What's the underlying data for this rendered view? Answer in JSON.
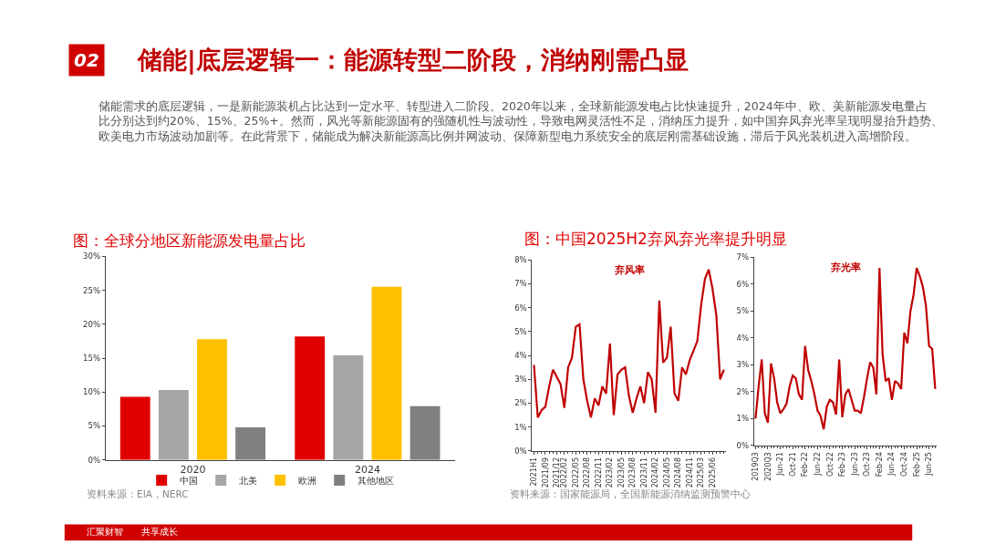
{
  "chart_data": [
    {
      "type": "other",
      "title": "储能|底层逻辑一：能源转型二阶段，消纳刚需凸显",
      "annotations": [
        "02",
        "储能需求的底层逻辑，一是新能源装机占比达到一定水平、转型进入二阶段。2020年以来，全球新能源发电占比快速提升，2024年中、欧、美新能源发电量占比分别达到约20%、15%、25%+。然而，风光等新能源固有的强随机性与波动性，导致电网灵活性不足，消纳压力提升，如中国弃风弃光率呈现明显抬升趋势、欧美电力市场波动加剧等。在此背景下，储能成为解决新能源高比例并网波动、保障新型电力系统安全的底层刚需基础设施，滞后于风光装机进入高增阶段。",
        "汇聚财智　　共享成长"
      ]
    },
    {
      "type": "bar",
      "title": "图：全球分地区新能源发电量占比",
      "categories": [
        "2020",
        "2024"
      ],
      "series": [
        {
          "name": "中国",
          "color": "#e00000",
          "values": [
            9.3,
            18.2
          ]
        },
        {
          "name": "北美",
          "color": "#a6a6a6",
          "values": [
            10.3,
            15.4
          ]
        },
        {
          "name": "欧洲",
          "color": "#ffc000",
          "values": [
            17.8,
            25.5
          ]
        },
        {
          "name": "其他地区",
          "color": "#808080",
          "values": [
            4.8,
            7.9
          ]
        }
      ],
      "ylim": [
        0,
        30
      ],
      "yticks": [
        {
          "value": 0,
          "label": "0%"
        },
        {
          "value": 5,
          "label": "5%"
        },
        {
          "value": 10,
          "label": "10%"
        },
        {
          "value": 15,
          "label": "15%"
        },
        {
          "value": 20,
          "label": "20%"
        },
        {
          "value": 25,
          "label": "25%"
        },
        {
          "value": 30,
          "label": "30%"
        }
      ],
      "legend": "bottom",
      "grid": false,
      "annotations": [
        "资料来源：EIA，NERC"
      ]
    },
    {
      "type": "line",
      "title": "图：中国2025H2弃风弃光率提升明显",
      "categories": [
        "2021H1",
        null,
        null,
        "2021/09",
        null,
        null,
        "2021/12",
        null,
        "2022/02",
        null,
        null,
        "2022/05",
        null,
        null,
        "2022/08",
        null,
        null,
        "2022/11",
        null,
        null,
        "2023/02",
        null,
        null,
        "2023/05",
        null,
        null,
        "2023/08",
        null,
        null,
        "2023/11",
        null,
        null,
        "2024/02",
        null,
        null,
        "2024/05",
        null,
        null,
        "2024/08",
        null,
        null,
        "2024/11",
        null,
        null,
        "2025/03",
        null,
        null,
        "2025/06",
        null,
        null,
        null
      ],
      "series": [
        {
          "name": "弃风率",
          "color": "#c00000",
          "values": [
            3.6,
            1.4,
            1.7,
            1.85,
            2.7,
            3.4,
            3.1,
            2.8,
            1.8,
            3.5,
            3.9,
            5.2,
            5.3,
            3.0,
            2.1,
            1.4,
            2.2,
            1.9,
            2.7,
            2.4,
            4.5,
            1.5,
            3.2,
            3.4,
            3.5,
            2.3,
            1.6,
            2.2,
            2.7,
            2.0,
            3.3,
            3.0,
            1.6,
            6.3,
            3.7,
            3.9,
            5.2,
            2.4,
            2.1,
            3.5,
            3.2,
            3.8,
            4.2,
            4.6,
            6.1,
            7.2,
            7.6,
            6.8,
            5.7,
            3.0,
            3.4
          ]
        }
      ],
      "ylim": [
        0,
        8
      ],
      "yticks": [
        {
          "value": 0,
          "label": "0%"
        },
        {
          "value": 1,
          "label": "1%"
        },
        {
          "value": 2,
          "label": "2%"
        },
        {
          "value": 3,
          "label": "3%"
        },
        {
          "value": 4,
          "label": "4%"
        },
        {
          "value": 5,
          "label": "5%"
        },
        {
          "value": 6,
          "label": "6%"
        },
        {
          "value": 7,
          "label": "7%"
        },
        {
          "value": 8,
          "label": "8%"
        }
      ],
      "grid": false,
      "marker": "none",
      "annotations": [
        "资料来源：国家能源局，全国新能源消纳监测预警中心"
      ]
    },
    {
      "type": "line",
      "categories": [
        "2019Q3",
        null,
        null,
        null,
        "2020Q3",
        null,
        null,
        null,
        "Jun-21",
        null,
        null,
        null,
        "Oct-21",
        null,
        null,
        null,
        "Feb-22",
        null,
        null,
        null,
        "Jun-22",
        null,
        null,
        null,
        "Oct-22",
        null,
        null,
        null,
        "Feb-23",
        null,
        null,
        null,
        "Jun-23",
        null,
        null,
        null,
        "Oct-23",
        null,
        null,
        null,
        "Feb-24",
        null,
        null,
        null,
        "Jun-24",
        null,
        null,
        null,
        "Oct-24",
        null,
        null,
        null,
        "Feb-25",
        null,
        null,
        null,
        "Jun-25",
        null,
        null
      ],
      "series": [
        {
          "name": "弃光率",
          "color": "#c00000",
          "values": [
            1.0,
            2.2,
            3.2,
            1.2,
            0.85,
            3.05,
            2.5,
            1.6,
            1.2,
            1.35,
            1.55,
            2.2,
            2.6,
            2.5,
            1.9,
            1.7,
            3.7,
            2.8,
            2.4,
            1.9,
            1.3,
            1.1,
            0.6,
            1.45,
            1.7,
            1.6,
            1.15,
            3.2,
            1.05,
            1.9,
            2.1,
            1.7,
            1.3,
            1.3,
            1.2,
            1.8,
            2.5,
            3.1,
            2.9,
            1.9,
            6.6,
            3.4,
            2.4,
            2.5,
            1.7,
            2.4,
            2.3,
            2.1,
            4.2,
            3.8,
            5.0,
            5.6,
            6.6,
            6.3,
            5.9,
            5.2,
            3.7,
            3.6,
            2.1
          ]
        }
      ],
      "ylim": [
        0,
        7
      ],
      "yticks": [
        {
          "value": 0,
          "label": "0%"
        },
        {
          "value": 1,
          "label": "1%"
        },
        {
          "value": 2,
          "label": "2%"
        },
        {
          "value": 3,
          "label": "3%"
        },
        {
          "value": 4,
          "label": "4%"
        },
        {
          "value": 5,
          "label": "5%"
        },
        {
          "value": 6,
          "label": "6%"
        },
        {
          "value": 7,
          "label": "7%"
        }
      ],
      "grid": false,
      "marker": "none"
    }
  ]
}
